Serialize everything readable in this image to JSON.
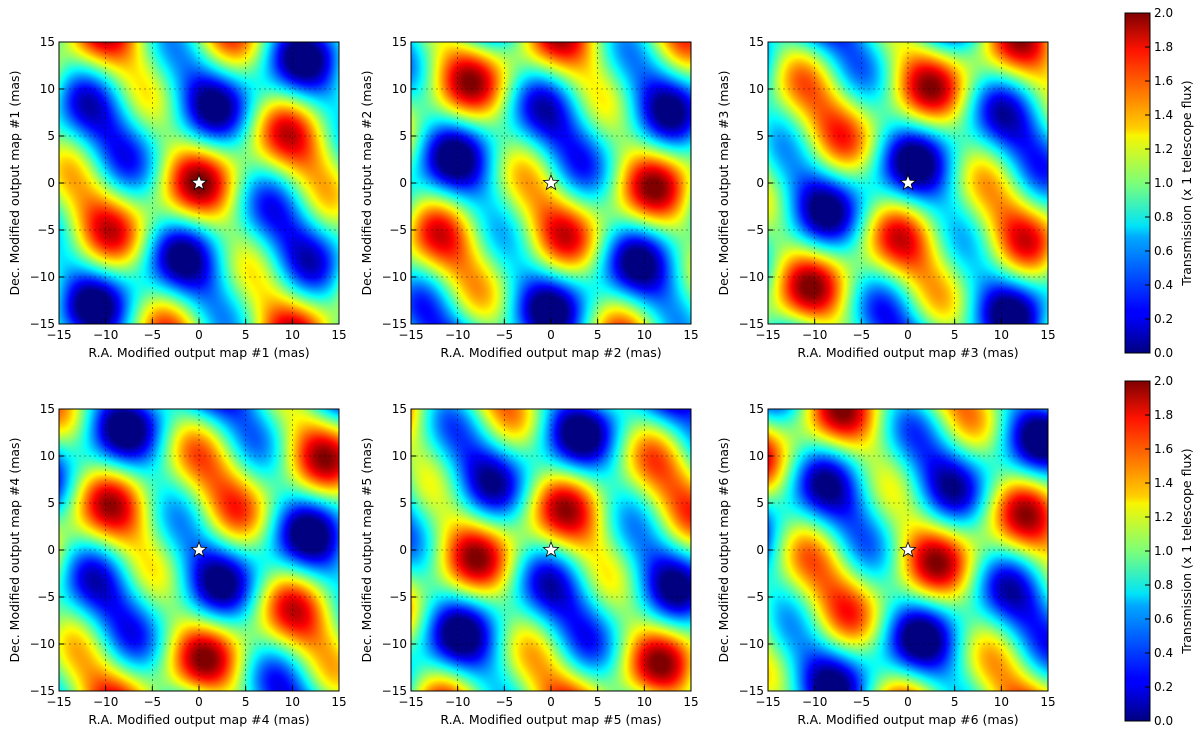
{
  "chart_data": [
    {
      "type": "heatmap",
      "xlabel": "R.A. Modified output map #1 (mas)",
      "ylabel": "Dec. Modified output map #1 (mas)",
      "xlim": [
        -15,
        15
      ],
      "ylim": [
        -15,
        15
      ],
      "xticks": [
        -15,
        -10,
        -5,
        0,
        5,
        10,
        15
      ],
      "yticks": [
        -15,
        -10,
        -5,
        0,
        5,
        10,
        15
      ],
      "grid": true,
      "colormap": "jet",
      "star_marker": [
        0,
        0
      ]
    },
    {
      "type": "heatmap",
      "xlabel": "R.A. Modified output map #2 (mas)",
      "ylabel": "Dec. Modified output map #2 (mas)",
      "xlim": [
        -15,
        15
      ],
      "ylim": [
        -15,
        15
      ],
      "xticks": [
        -15,
        -10,
        -5,
        0,
        5,
        10,
        15
      ],
      "yticks": [
        -15,
        -10,
        -5,
        0,
        5,
        10,
        15
      ],
      "grid": true,
      "colormap": "jet",
      "star_marker": [
        0,
        0
      ]
    },
    {
      "type": "heatmap",
      "xlabel": "R.A. Modified output map #3 (mas)",
      "ylabel": "Dec. Modified output map #3 (mas)",
      "xlim": [
        -15,
        15
      ],
      "ylim": [
        -15,
        15
      ],
      "xticks": [
        -15,
        -10,
        -5,
        0,
        5,
        10,
        15
      ],
      "yticks": [
        -15,
        -10,
        -5,
        0,
        5,
        10,
        15
      ],
      "grid": true,
      "colormap": "jet",
      "star_marker": [
        0,
        0
      ]
    },
    {
      "type": "heatmap",
      "xlabel": "R.A. Modified output map #4 (mas)",
      "ylabel": "Dec. Modified output map #4 (mas)",
      "xlim": [
        -15,
        15
      ],
      "ylim": [
        -15,
        15
      ],
      "xticks": [
        -15,
        -10,
        -5,
        0,
        5,
        10,
        15
      ],
      "yticks": [
        -15,
        -10,
        -5,
        0,
        5,
        10,
        15
      ],
      "grid": true,
      "colormap": "jet",
      "star_marker": [
        0,
        0
      ]
    },
    {
      "type": "heatmap",
      "xlabel": "R.A. Modified output map #5 (mas)",
      "ylabel": "Dec. Modified output map #5 (mas)",
      "xlim": [
        -15,
        15
      ],
      "ylim": [
        -15,
        15
      ],
      "xticks": [
        -15,
        -10,
        -5,
        0,
        5,
        10,
        15
      ],
      "yticks": [
        -15,
        -10,
        -5,
        0,
        5,
        10,
        15
      ],
      "grid": true,
      "colormap": "jet",
      "star_marker": [
        0,
        0
      ]
    },
    {
      "type": "heatmap",
      "xlabel": "R.A. Modified output map #6 (mas)",
      "ylabel": "Dec. Modified output map #6 (mas)",
      "xlim": [
        -15,
        15
      ],
      "ylim": [
        -15,
        15
      ],
      "xticks": [
        -15,
        -10,
        -5,
        0,
        5,
        10,
        15
      ],
      "yticks": [
        -15,
        -10,
        -5,
        0,
        5,
        10,
        15
      ],
      "grid": true,
      "colormap": "jet",
      "star_marker": [
        0,
        0
      ]
    }
  ],
  "colorbars": [
    {
      "label": "Transmission (x 1 telescope flux)",
      "range": [
        0.0,
        2.0
      ],
      "ticks": [
        "0.0",
        "0.2",
        "0.4",
        "0.6",
        "0.8",
        "1.0",
        "1.2",
        "1.4",
        "1.6",
        "1.8",
        "2.0"
      ],
      "colormap": "jet"
    },
    {
      "label": "Transmission (x 1 telescope flux)",
      "range": [
        0.0,
        2.0
      ],
      "ticks": [
        "0.0",
        "0.2",
        "0.4",
        "0.6",
        "0.8",
        "1.0",
        "1.2",
        "1.4",
        "1.6",
        "1.8",
        "2.0"
      ],
      "colormap": "jet"
    }
  ]
}
